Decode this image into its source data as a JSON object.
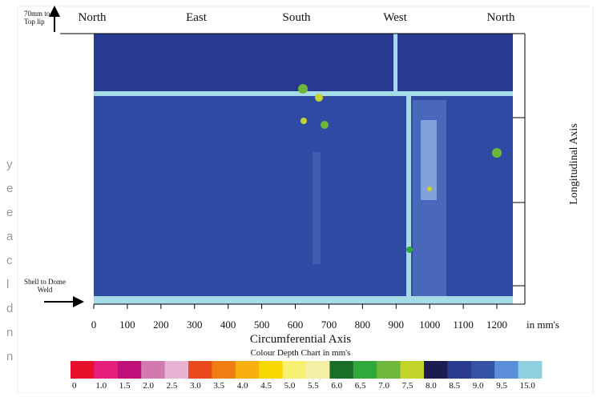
{
  "figure": {
    "directions": [
      "North",
      "East",
      "South",
      "West",
      "North"
    ],
    "top_note": [
      "70mm to",
      "Top lip"
    ],
    "bottom_note": [
      "Shell to Dome",
      "Weld"
    ],
    "y_axis_title": "Longitudinal Axis",
    "x_axis": {
      "title": "Circumferential Axis",
      "unit": "in mm's",
      "lim": [
        0,
        1250
      ],
      "ticks": [
        0,
        100,
        200,
        300,
        400,
        500,
        600,
        700,
        800,
        900,
        1000,
        1100,
        1200
      ]
    },
    "legend": {
      "title": "Colour Depth Chart in mm's",
      "items": [
        {
          "label": "0",
          "color": "#e8102a"
        },
        {
          "label": "1.0",
          "color": "#e6207a"
        },
        {
          "label": "1.5",
          "color": "#c0117a"
        },
        {
          "label": "2.0",
          "color": "#d27ab0"
        },
        {
          "label": "2.5",
          "color": "#e8b2d2"
        },
        {
          "label": "3.0",
          "color": "#e84a1e"
        },
        {
          "label": "3.5",
          "color": "#f07d10"
        },
        {
          "label": "4.0",
          "color": "#f8b010"
        },
        {
          "label": "4.5",
          "color": "#f8d800"
        },
        {
          "label": "5.0",
          "color": "#f8f070"
        },
        {
          "label": "5.5",
          "color": "#f6f0a6"
        },
        {
          "label": "6.0",
          "color": "#1a6e2a"
        },
        {
          "label": "6.5",
          "color": "#2faa3a"
        },
        {
          "label": "7.0",
          "color": "#6db83a"
        },
        {
          "label": "7.5",
          "color": "#c4d42a"
        },
        {
          "label": "8.0",
          "color": "#1c1c50"
        },
        {
          "label": "8.5",
          "color": "#2a3a8e"
        },
        {
          "label": "9.0",
          "color": "#3452a8"
        },
        {
          "label": "9.5",
          "color": "#5b8ed8"
        },
        {
          "label": "15.0",
          "color": "#8fd0e0"
        }
      ]
    },
    "side_text": [
      "y",
      "e",
      "e",
      "a",
      "c",
      "l",
      "d",
      "n",
      "n"
    ]
  }
}
